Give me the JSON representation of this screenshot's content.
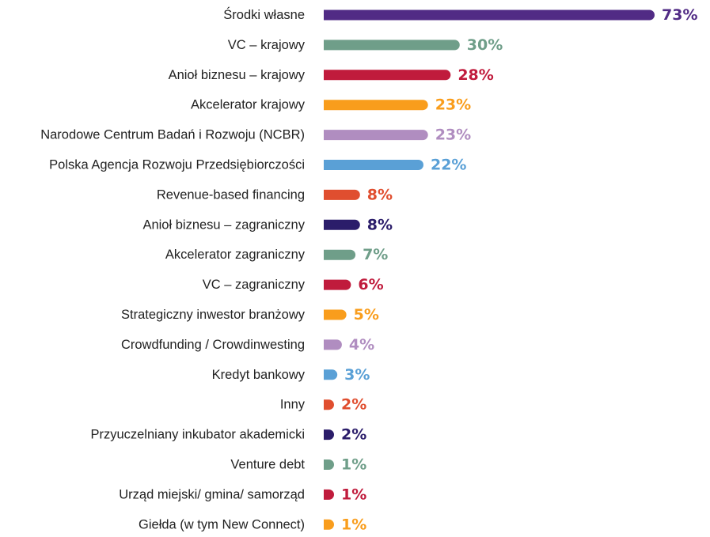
{
  "chart_data": {
    "type": "bar",
    "orientation": "horizontal",
    "grid": false,
    "legend": "none",
    "xlim": [
      0,
      73
    ],
    "categories": [
      "Środki własne",
      "VC – krajowy",
      "Anioł biznesu – krajowy",
      "Akcelerator krajowy",
      "Narodowe Centrum Badań i Rozwoju (NCBR)",
      "Polska Agencja Rozwoju Przedsiębiorczości",
      "Revenue-based financing",
      "Anioł biznesu – zagraniczny",
      "Akcelerator zagraniczny",
      "VC – zagraniczny",
      "Strategiczny inwestor branżowy",
      "Crowdfunding / Crowdinwesting",
      "Kredyt bankowy",
      "Inny",
      "Przyuczelniany inkubator akademicki",
      "Venture debt",
      "Urząd miejski/ gmina/ samorząd",
      "Giełda (w tym New Connect)"
    ],
    "values": [
      73,
      30,
      28,
      23,
      23,
      22,
      8,
      8,
      7,
      6,
      5,
      4,
      3,
      2,
      2,
      1,
      1,
      1
    ],
    "value_labels": [
      "73%",
      "30%",
      "28%",
      "23%",
      "23%",
      "22%",
      "8%",
      "8%",
      "7%",
      "6%",
      "5%",
      "4%",
      "3%",
      "2%",
      "2%",
      "1%",
      "1%",
      "1%"
    ],
    "colors": [
      "#512b85",
      "#6f9e89",
      "#c01b3c",
      "#f99d1c",
      "#b08dc0",
      "#5aa0d6",
      "#e04e2f",
      "#2b1d6a",
      "#6f9e89",
      "#c01b3c",
      "#f99d1c",
      "#b08dc0",
      "#5aa0d6",
      "#e04e2f",
      "#2b1d6a",
      "#6f9e89",
      "#c01b3c",
      "#f99d1c"
    ]
  }
}
